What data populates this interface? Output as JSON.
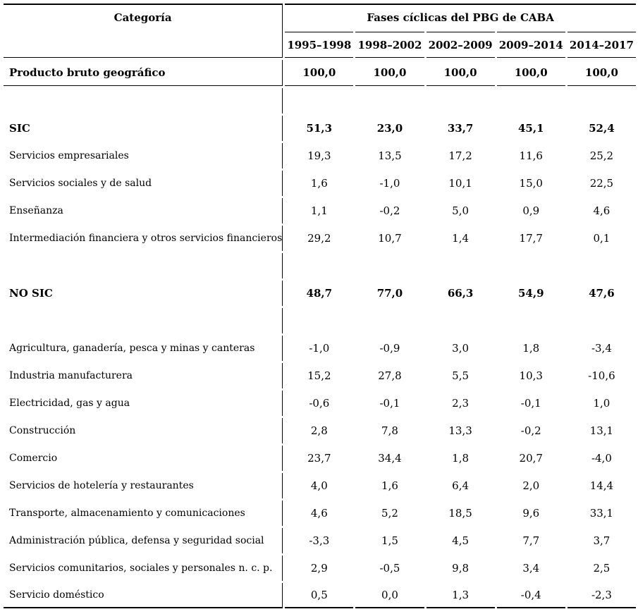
{
  "chart_data": {
    "type": "table",
    "title": "Fases cíclicas del PBG de CABA",
    "decimal_separator": ",",
    "header": {
      "category_label": "Categoría",
      "group_label": "Fases cíclicas del PBG de CABA",
      "periods": [
        "1995–1998",
        "1998–2002",
        "2002–2009",
        "2009–2014",
        "2014–2017"
      ]
    },
    "rows": [
      {
        "label": "Producto bruto geográfico",
        "values": [
          "100,0",
          "100,0",
          "100,0",
          "100,0",
          "100,0"
        ],
        "bold": true,
        "divider": true,
        "spacer": false,
        "last": false
      },
      {
        "label": "",
        "values": [
          "",
          "",
          "",
          "",
          ""
        ],
        "bold": false,
        "divider": false,
        "spacer": true,
        "last": false
      },
      {
        "label": "SIC",
        "values": [
          "51,3",
          "23,0",
          "33,7",
          "45,1",
          "52,4"
        ],
        "bold": true,
        "divider": false,
        "spacer": false,
        "last": false
      },
      {
        "label": "Servicios empresariales",
        "values": [
          "19,3",
          "13,5",
          "17,2",
          "11,6",
          "25,2"
        ],
        "bold": false,
        "divider": false,
        "spacer": false,
        "last": false
      },
      {
        "label": "Servicios sociales y de salud",
        "values": [
          "1,6",
          "-1,0",
          "10,1",
          "15,0",
          "22,5"
        ],
        "bold": false,
        "divider": false,
        "spacer": false,
        "last": false
      },
      {
        "label": "Enseñanza",
        "values": [
          "1,1",
          "-0,2",
          "5,0",
          "0,9",
          "4,6"
        ],
        "bold": false,
        "divider": false,
        "spacer": false,
        "last": false
      },
      {
        "label": "Intermediación financiera y otros servicios financieros",
        "values": [
          "29,2",
          "10,7",
          "1,4",
          "17,7",
          "0,1"
        ],
        "bold": false,
        "divider": false,
        "spacer": false,
        "last": false
      },
      {
        "label": "",
        "values": [
          "",
          "",
          "",
          "",
          ""
        ],
        "bold": false,
        "divider": false,
        "spacer": true,
        "last": false
      },
      {
        "label": "NO SIC",
        "values": [
          "48,7",
          "77,0",
          "66,3",
          "54,9",
          "47,6"
        ],
        "bold": true,
        "divider": false,
        "spacer": false,
        "last": false
      },
      {
        "label": "",
        "values": [
          "",
          "",
          "",
          "",
          ""
        ],
        "bold": false,
        "divider": false,
        "spacer": true,
        "last": false
      },
      {
        "label": "Agricultura, ganadería, pesca y minas y canteras",
        "values": [
          "-1,0",
          "-0,9",
          "3,0",
          "1,8",
          "-3,4"
        ],
        "bold": false,
        "divider": false,
        "spacer": false,
        "last": false
      },
      {
        "label": "Industria manufacturera",
        "values": [
          "15,2",
          "27,8",
          "5,5",
          "10,3",
          "-10,6"
        ],
        "bold": false,
        "divider": false,
        "spacer": false,
        "last": false
      },
      {
        "label": "Electricidad, gas y agua",
        "values": [
          "-0,6",
          "-0,1",
          "2,3",
          "-0,1",
          "1,0"
        ],
        "bold": false,
        "divider": false,
        "spacer": false,
        "last": false
      },
      {
        "label": "Construcción",
        "values": [
          "2,8",
          "7,8",
          "13,3",
          "-0,2",
          "13,1"
        ],
        "bold": false,
        "divider": false,
        "spacer": false,
        "last": false
      },
      {
        "label": "Comercio",
        "values": [
          "23,7",
          "34,4",
          "1,8",
          "20,7",
          "-4,0"
        ],
        "bold": false,
        "divider": false,
        "spacer": false,
        "last": false
      },
      {
        "label": "Servicios de hotelería y restaurantes",
        "values": [
          "4,0",
          "1,6",
          "6,4",
          "2,0",
          "14,4"
        ],
        "bold": false,
        "divider": false,
        "spacer": false,
        "last": false
      },
      {
        "label": "Transporte, almacenamiento y comunicaciones",
        "values": [
          "4,6",
          "5,2",
          "18,5",
          "9,6",
          "33,1"
        ],
        "bold": false,
        "divider": false,
        "spacer": false,
        "last": false
      },
      {
        "label": "Administración pública, defensa y seguridad social",
        "values": [
          "-3,3",
          "1,5",
          "4,5",
          "7,7",
          "3,7"
        ],
        "bold": false,
        "divider": false,
        "spacer": false,
        "last": false
      },
      {
        "label": "Servicios comunitarios, sociales y personales n. c. p.",
        "values": [
          "2,9",
          "-0,5",
          "9,8",
          "3,4",
          "2,5"
        ],
        "bold": false,
        "divider": false,
        "spacer": false,
        "last": false
      },
      {
        "label": "Servicio doméstico",
        "values": [
          "0,5",
          "0,0",
          "1,3",
          "-0,4",
          "-2,3"
        ],
        "bold": false,
        "divider": false,
        "spacer": false,
        "last": true
      }
    ]
  }
}
